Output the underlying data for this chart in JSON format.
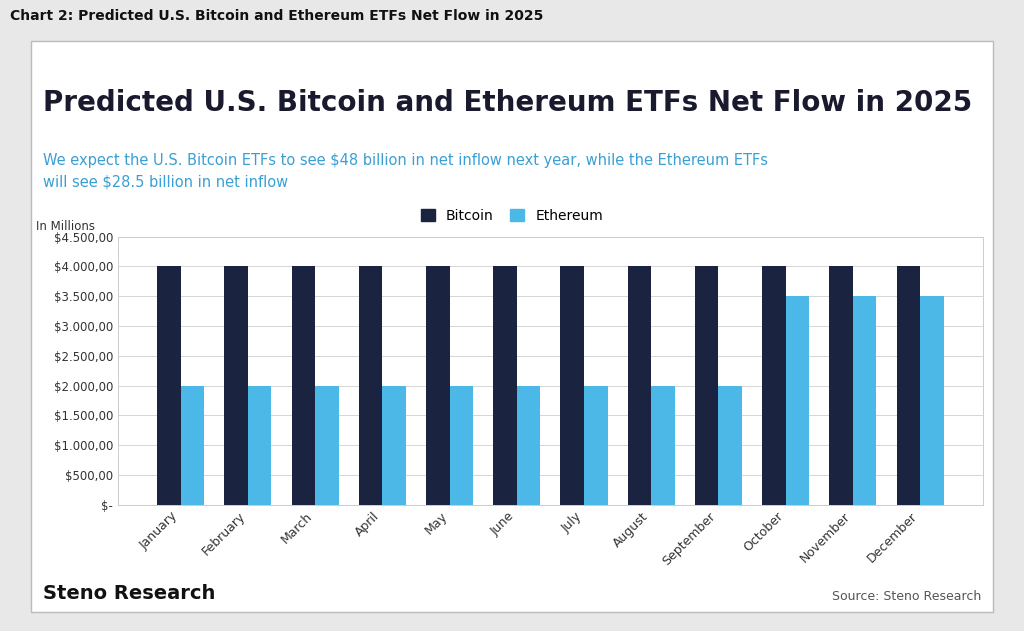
{
  "title": "Predicted U.S. Bitcoin and Ethereum ETFs Net Flow in 2025",
  "subtitle_line1": "We expect the U.S. Bitcoin ETFs to see $48 billion in net inflow next year, while the Ethereum ETFs",
  "subtitle_line2": "will see $28.5 billion in net inflow",
  "outer_title": "Chart 2: Predicted U.S. Bitcoin and Ethereum ETFs Net Flow in 2025",
  "ylabel": "In Millions",
  "months": [
    "January",
    "February",
    "March",
    "April",
    "May",
    "June",
    "July",
    "August",
    "September",
    "October",
    "November",
    "December"
  ],
  "bitcoin_values": [
    4000,
    4000,
    4000,
    4000,
    4000,
    4000,
    4000,
    4000,
    4000,
    4000,
    4000,
    4000
  ],
  "ethereum_values": [
    2000,
    2000,
    2000,
    2000,
    2000,
    2000,
    2000,
    2000,
    2000,
    3500,
    3500,
    3500
  ],
  "bitcoin_color": "#1a2340",
  "ethereum_color": "#4cb8e8",
  "ylim": [
    0,
    4500
  ],
  "yticks": [
    0,
    500,
    1000,
    1500,
    2000,
    2500,
    3000,
    3500,
    4000,
    4500
  ],
  "ytick_labels": [
    "$-",
    "$500,00",
    "$1.000,00",
    "$1.500,00",
    "$2.000,00",
    "$2.500,00",
    "$3.000,00",
    "$3.500,00",
    "$4.000,00",
    "$4.500,00"
  ],
  "grid_color": "#d0d0d0",
  "chart_bg": "#ffffff",
  "outer_bg": "#e8e8e8",
  "panel_bg": "#ffffff",
  "title_fontsize": 20,
  "subtitle_fontsize": 10.5,
  "bar_width": 0.35,
  "source_text": "Source: Steno Research",
  "steno_text": "Steno Research",
  "title_color": "#1a1a2e",
  "subtitle_color": "#3a9fd4",
  "outer_title_fontsize": 10
}
